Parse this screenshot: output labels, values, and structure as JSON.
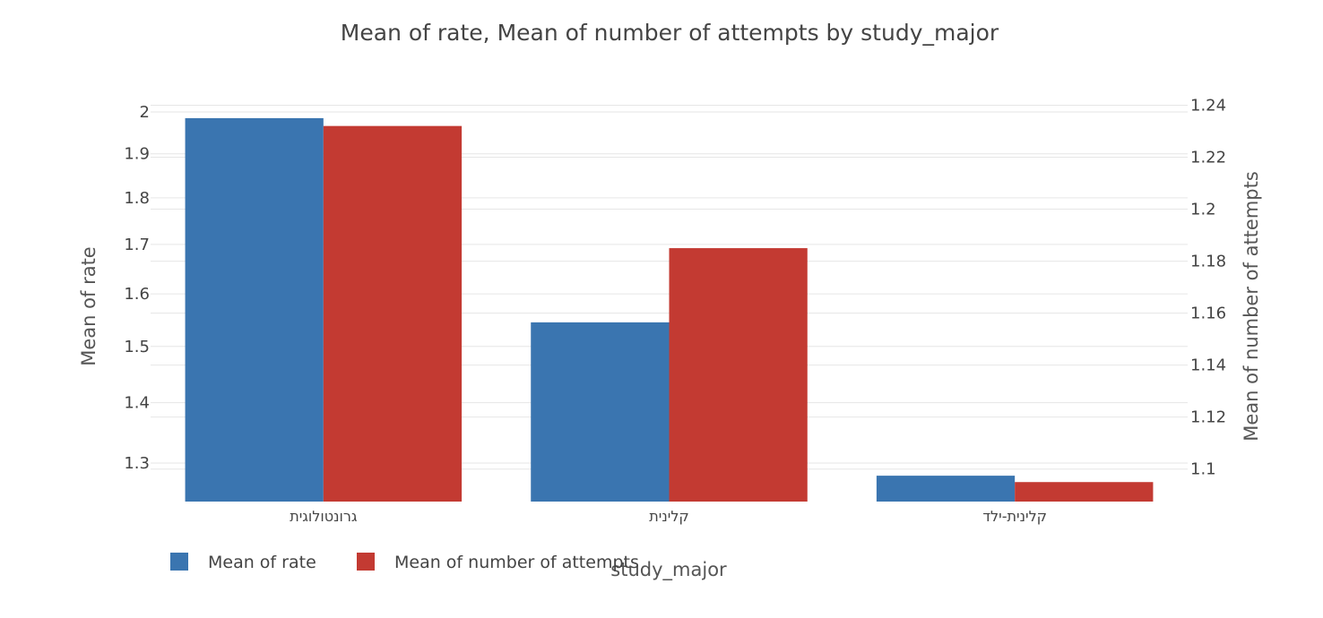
{
  "chart_data": {
    "type": "bar",
    "title": "Mean of rate, Mean of number of attempts by study_major",
    "xlabel": "study_major",
    "categories": [
      "גרונטולוגית",
      "קלינית",
      "קלינית-ילד"
    ],
    "series": [
      {
        "name": "Mean of rate",
        "axis": "y",
        "color": "#3a75b0",
        "values": [
          1.985,
          1.545,
          1.28
        ]
      },
      {
        "name": "Mean of number of attempts",
        "axis": "y2",
        "color": "#c33a32",
        "values": [
          1.232,
          1.185,
          1.095
        ]
      }
    ],
    "y": {
      "label": "Mean of rate",
      "scale": "log",
      "range": [
        1.24,
        2.02
      ],
      "ticks": [
        1.3,
        1.4,
        1.5,
        1.6,
        1.7,
        1.8,
        1.9,
        2
      ],
      "tick_labels": [
        "1.3",
        "1.4",
        "1.5",
        "1.6",
        "1.7",
        "1.8",
        "1.9",
        "2"
      ]
    },
    "y2": {
      "label": "Mean of number of attempts",
      "scale": "linear",
      "range": [
        1.0875,
        1.2405
      ],
      "ticks": [
        1.1,
        1.12,
        1.14,
        1.16,
        1.18,
        1.2,
        1.22,
        1.24
      ],
      "tick_labels": [
        "1.1",
        "1.12",
        "1.14",
        "1.16",
        "1.18",
        "1.2",
        "1.22",
        "1.24"
      ]
    },
    "legend": {
      "position": "bottom-left",
      "orientation": "horizontal"
    },
    "grid": true
  }
}
